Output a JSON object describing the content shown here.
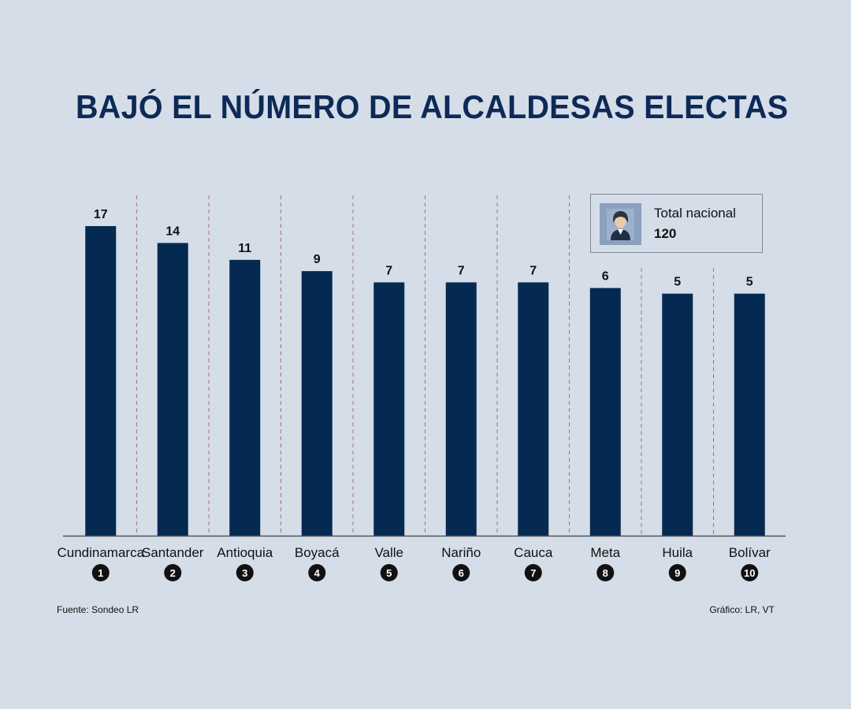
{
  "title": "BAJÓ EL NÚMERO DE ALCALDESAS ELECTAS",
  "colors": {
    "bar": "#052a52",
    "background": "#d5dde8",
    "title": "#0d2a57",
    "divider": "#a8727b",
    "axis": "#555555"
  },
  "total_box": {
    "icon": "woman-avatar-icon",
    "label": "Total nacional",
    "value": "120"
  },
  "footer": {
    "source": "Fuente: Sondeo LR",
    "credit": "Gráfico: LR, VT"
  },
  "chart_data": {
    "type": "bar",
    "title": "BAJÓ EL NÚMERO DE ALCALDESAS ELECTAS",
    "xlabel": "",
    "ylabel": "",
    "grid": false,
    "categories": [
      "Cundinamarca",
      "Santander",
      "Antioquia",
      "Boyacá",
      "Valle",
      "Nariño",
      "Cauca",
      "Meta",
      "Huila",
      "Bolívar"
    ],
    "ranks": [
      "1",
      "2",
      "3",
      "4",
      "5",
      "6",
      "7",
      "8",
      "9",
      "10"
    ],
    "values": [
      17,
      14,
      11,
      9,
      7,
      7,
      7,
      6,
      5,
      5
    ],
    "ylim": [
      -38,
      17
    ]
  }
}
